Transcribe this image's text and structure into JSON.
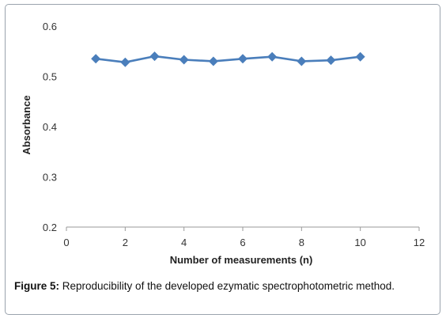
{
  "chart_data": {
    "type": "line",
    "title": "",
    "xlabel": "Number of measurements (n)",
    "ylabel": "Absorbance",
    "xlim": [
      0,
      12
    ],
    "ylim": [
      0.2,
      0.6
    ],
    "xticks": [
      0,
      2,
      4,
      6,
      8,
      10,
      12
    ],
    "yticks": [
      0.2,
      0.3,
      0.4,
      0.5,
      0.6
    ],
    "xtick_labels": [
      "0",
      "2",
      "4",
      "6",
      "8",
      "10",
      "12"
    ],
    "ytick_labels": [
      "0.2",
      "0.3",
      "0.4",
      "0.5",
      "0.6"
    ],
    "grid": false,
    "legend": "none",
    "marker": "diamond",
    "color": "#4a7ebb",
    "series": [
      {
        "x": [
          1,
          2,
          3,
          4,
          5,
          6,
          7,
          8,
          9,
          10
        ],
        "values": [
          0.535,
          0.528,
          0.54,
          0.533,
          0.53,
          0.535,
          0.539,
          0.53,
          0.532,
          0.539
        ]
      }
    ]
  },
  "caption": {
    "label": "Figure 5:",
    "text": " Reproducibility of the developed ezymatic spectrophotometric method."
  }
}
